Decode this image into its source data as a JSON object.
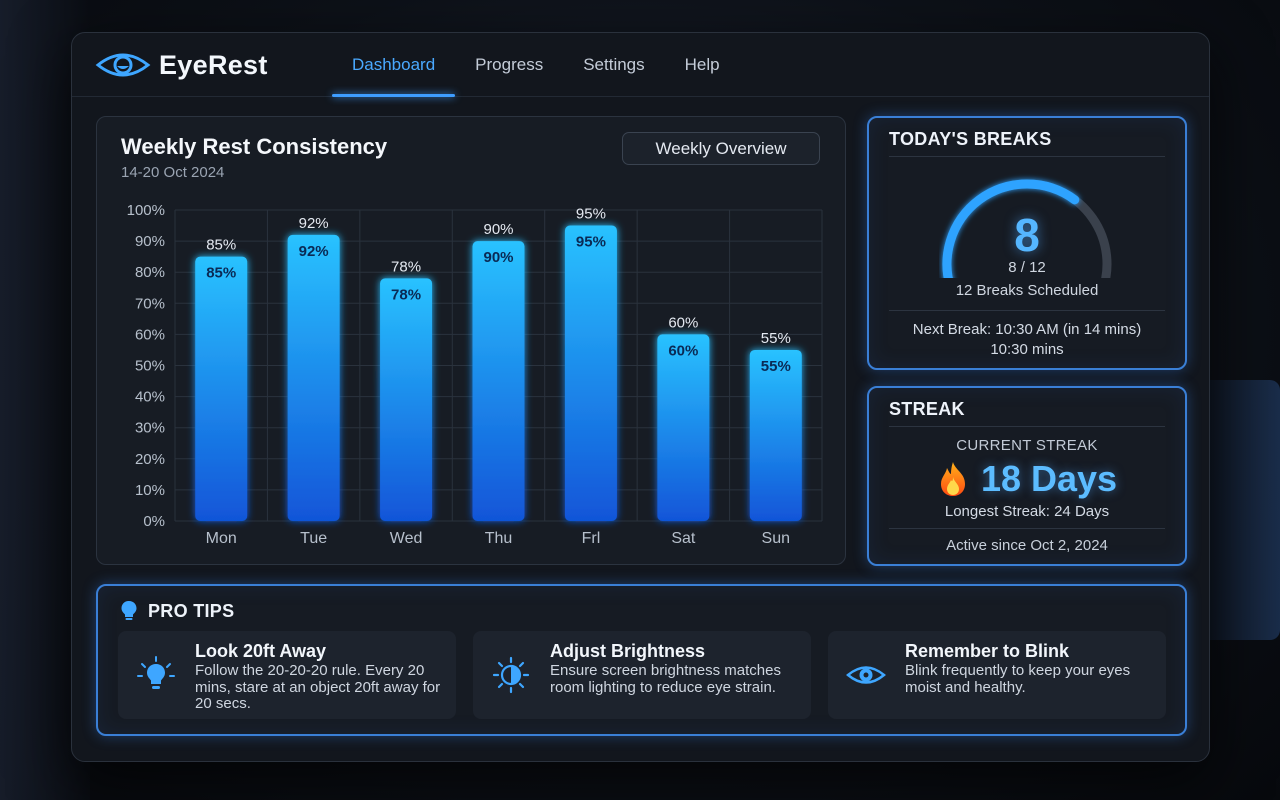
{
  "app": {
    "name": "EyeRest",
    "logo_icon": "eye-icon"
  },
  "nav": {
    "tabs": [
      "Dashboard",
      "Progress",
      "Settings",
      "Help"
    ],
    "active": "Dashboard"
  },
  "chart_card": {
    "title": "Weekly Rest Consistency",
    "subtitle": "14-20 Oct 2024",
    "view_button": "Weekly Overview"
  },
  "chart_data": {
    "type": "bar",
    "title": "Weekly Rest Consistency",
    "categories": [
      "Mon",
      "Tue",
      "Wed",
      "Thu",
      "Frl",
      "Sat",
      "Sun"
    ],
    "values": [
      85,
      92,
      78,
      90,
      95,
      60,
      55
    ],
    "value_labels": [
      "85%",
      "92%",
      "78%",
      "90%",
      "95%",
      "60%",
      "55%"
    ],
    "yticks": [
      "0%",
      "10%",
      "20%",
      "30%",
      "40%",
      "50%",
      "60%",
      "70%",
      "80%",
      "90%",
      "100%"
    ],
    "ylim": [
      0,
      100
    ],
    "grid": true,
    "bar_color": "#1aa0ff"
  },
  "todays_breaks": {
    "title": "TODAY'S BREAKS",
    "taken": 8,
    "scheduled": 12,
    "count_display": "8",
    "fraction": "8 / 12",
    "scheduled_label": "12 Breaks Scheduled",
    "next_break_line1": "Next Break: 10:30 AM (in 14 mins)",
    "next_break_line2": "10:30 mins"
  },
  "streak": {
    "title": "STREAK",
    "current_label": "CURRENT STREAK",
    "icon": "flame-icon",
    "current_value": "18 Days",
    "longest": "Longest Streak: 24 Days",
    "since": "Active since Oct 2, 2024"
  },
  "pro_tips": {
    "title": "PRO TIPS",
    "icon": "lightbulb-icon",
    "tips": [
      {
        "icon": "lightbulb-icon",
        "title": "Look 20ft Away",
        "text": "Follow the 20-20-20 rule. Every 20 mins, stare at an object 20ft away for 20 secs."
      },
      {
        "icon": "brightness-icon",
        "title": "Adjust Brightness",
        "text": "Ensure screen brightness matches room lighting to reduce eye strain."
      },
      {
        "icon": "eye-icon",
        "title": "Remember to Blink",
        "text": "Blink frequently to keep your eyes moist and healthy."
      }
    ]
  },
  "colors": {
    "accent": "#3e9dff",
    "bar": "#1aa0ff",
    "card_border": "#3a7fd6",
    "background": "#12161d"
  }
}
